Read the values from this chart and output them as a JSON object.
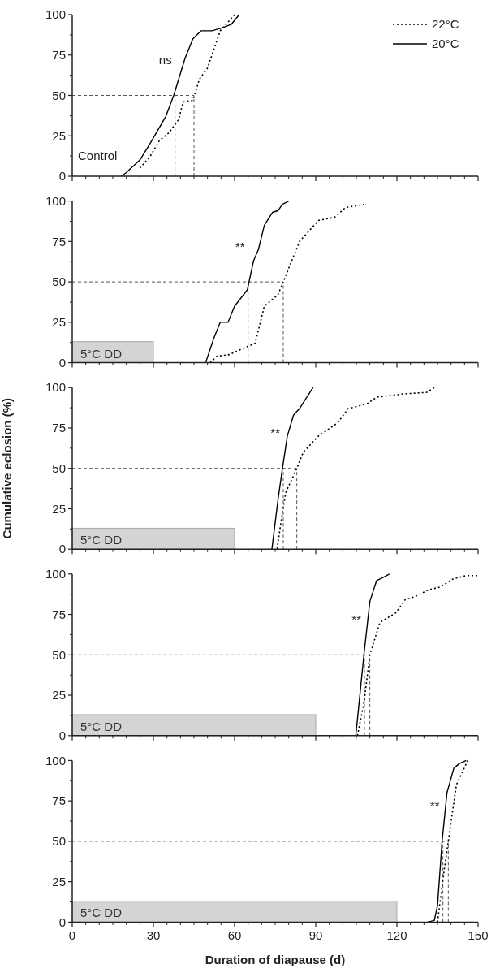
{
  "chart_data": [
    {
      "type": "line",
      "xlim": [
        0,
        150
      ],
      "xticks": [
        0,
        30,
        60,
        90,
        120,
        150
      ],
      "ylim": [
        0,
        100
      ],
      "yticks": [
        0,
        25,
        50,
        75,
        100
      ],
      "tick_labels": "y",
      "legend": "top right",
      "grid": false,
      "series": [
        {
          "name": "22°C",
          "color": "#000000",
          "line_style": "dotted",
          "x": [
            25,
            28.7,
            32.2,
            35.8,
            39.3,
            41,
            44.6,
            47,
            50,
            54.7,
            60
          ],
          "values": [
            5,
            12,
            22,
            27,
            35,
            46,
            47,
            60,
            67,
            90,
            100
          ]
        },
        {
          "name": "20°C",
          "color": "#000000",
          "line_style": "solid",
          "x": [
            18,
            19.8,
            25,
            28.7,
            34.6,
            37.5,
            41.7,
            44.6,
            47.6,
            51.7,
            55.8,
            58.8,
            61.7
          ],
          "values": [
            0,
            2,
            10,
            20,
            37,
            50,
            73,
            85,
            90,
            90,
            92,
            94,
            100
          ]
        }
      ],
      "ref_lines": [
        {
          "axis": "y",
          "value": 50,
          "line_style": "dashed"
        },
        {
          "axis": "x",
          "value": 38,
          "line_style": "dashed"
        },
        {
          "axis": "x",
          "value": 45,
          "line_style": "dashed"
        }
      ],
      "annotations": [
        "ns",
        "Control"
      ]
    },
    {
      "type": "line",
      "xlim": [
        0,
        150
      ],
      "xticks": [
        0,
        30,
        60,
        90,
        120,
        150
      ],
      "ylim": [
        0,
        100
      ],
      "yticks": [
        0,
        25,
        50,
        75,
        100
      ],
      "tick_labels": "y",
      "grid": false,
      "series": [
        {
          "color": "#000000",
          "line_style": "dotted",
          "x": [
            51,
            53.5,
            58,
            64.7,
            67.6,
            71,
            76,
            78,
            84,
            91,
            97,
            101,
            108
          ],
          "values": [
            0,
            4,
            5,
            10,
            12,
            35,
            42,
            50,
            75,
            88,
            90,
            96,
            98
          ]
        },
        {
          "color": "#000000",
          "line_style": "solid",
          "x": [
            49.3,
            52.3,
            54.7,
            57.6,
            60,
            64.7,
            67,
            68.8,
            71,
            74,
            76,
            77.7,
            80
          ],
          "values": [
            0,
            15,
            25,
            25,
            35,
            45,
            63,
            70,
            85,
            93,
            94,
            98,
            100
          ]
        }
      ],
      "ref_lines": [
        {
          "axis": "y",
          "value": 50,
          "line_style": "dashed"
        },
        {
          "axis": "x",
          "value": 65,
          "line_style": "dashed"
        },
        {
          "axis": "x",
          "value": 78,
          "line_style": "dashed"
        }
      ],
      "bands": [
        {
          "axis": "x",
          "from": 0,
          "to": 30,
          "label": "5°C DD",
          "color": "#d4d4d4"
        }
      ],
      "annotations": [
        "**"
      ]
    },
    {
      "type": "line",
      "xlim": [
        0,
        150
      ],
      "xticks": [
        0,
        30,
        60,
        90,
        120,
        150
      ],
      "ylim": [
        0,
        100
      ],
      "yticks": [
        0,
        25,
        50,
        75,
        100
      ],
      "tick_labels": "y",
      "grid": false,
      "ylabel": "Cumulative eclosion (%)",
      "series": [
        {
          "color": "#000000",
          "line_style": "dotted",
          "x": [
            75.7,
            77,
            78.9,
            83,
            85.4,
            91,
            98,
            102,
            109,
            112.5,
            122,
            131,
            133.8
          ],
          "values": [
            0,
            15,
            35,
            50,
            60,
            70,
            78,
            87,
            90,
            94,
            96,
            97,
            100
          ]
        },
        {
          "color": "#000000",
          "line_style": "solid",
          "x": [
            73.8,
            76,
            77.7,
            79.5,
            81.8,
            84,
            89
          ],
          "values": [
            0,
            30,
            50,
            70,
            83,
            87,
            100
          ]
        }
      ],
      "ref_lines": [
        {
          "axis": "y",
          "value": 50,
          "line_style": "dashed"
        },
        {
          "axis": "x",
          "value": 78,
          "line_style": "dashed"
        },
        {
          "axis": "x",
          "value": 83,
          "line_style": "dashed"
        }
      ],
      "bands": [
        {
          "axis": "x",
          "from": 0,
          "to": 60,
          "label": "5°C DD",
          "color": "#d4d4d4"
        }
      ],
      "annotations": [
        "**"
      ]
    },
    {
      "type": "line",
      "xlim": [
        0,
        150
      ],
      "xticks": [
        0,
        30,
        60,
        90,
        120,
        150
      ],
      "ylim": [
        0,
        100
      ],
      "yticks": [
        0,
        25,
        50,
        75,
        100
      ],
      "tick_labels": "y",
      "grid": false,
      "series": [
        {
          "color": "#000000",
          "line_style": "dotted",
          "x": [
            105.4,
            107.8,
            110,
            113.7,
            119.6,
            123,
            126.7,
            131.4,
            136,
            140.8,
            145.6,
            149.7
          ],
          "values": [
            0,
            20,
            50,
            70,
            76,
            84,
            86,
            90,
            92,
            97,
            99,
            99
          ]
        },
        {
          "color": "#000000",
          "line_style": "solid",
          "x": [
            104.8,
            106.6,
            107.8,
            110,
            112.5,
            115,
            117.2
          ],
          "values": [
            0,
            30,
            50,
            83,
            96,
            98,
            100
          ]
        }
      ],
      "ref_lines": [
        {
          "axis": "y",
          "value": 50,
          "line_style": "dashed"
        },
        {
          "axis": "x",
          "value": 108,
          "line_style": "dashed"
        },
        {
          "axis": "x",
          "value": 110,
          "line_style": "dashed"
        }
      ],
      "bands": [
        {
          "axis": "x",
          "from": 0,
          "to": 90,
          "label": "5°C DD",
          "color": "#d4d4d4"
        }
      ],
      "annotations": [
        "**"
      ]
    },
    {
      "type": "line",
      "xlim": [
        0,
        150
      ],
      "xticks": [
        0,
        30,
        60,
        90,
        120,
        150
      ],
      "ylim": [
        0,
        100
      ],
      "yticks": [
        0,
        25,
        50,
        75,
        100
      ],
      "grid": false,
      "xlabel": "Duration of diapause (d)",
      "series": [
        {
          "color": "#000000",
          "line_style": "dotted",
          "x": [
            135,
            137.3,
            139,
            142,
            146.2
          ],
          "values": [
            0,
            30,
            50,
            85,
            100
          ]
        },
        {
          "color": "#000000",
          "line_style": "solid",
          "x": [
            131.4,
            133.8,
            135,
            136.7,
            138.5,
            141,
            143,
            145.6
          ],
          "values": [
            0,
            1,
            10,
            50,
            80,
            95,
            98,
            100
          ]
        }
      ],
      "ref_lines": [
        {
          "axis": "y",
          "value": 50,
          "line_style": "dashed"
        },
        {
          "axis": "x",
          "value": 137,
          "line_style": "dashed"
        },
        {
          "axis": "x",
          "value": 139,
          "line_style": "dashed"
        }
      ],
      "bands": [
        {
          "axis": "x",
          "from": 0,
          "to": 120,
          "label": "5°C DD",
          "color": "#d4d4d4"
        }
      ],
      "annotations": [
        "**"
      ]
    }
  ]
}
